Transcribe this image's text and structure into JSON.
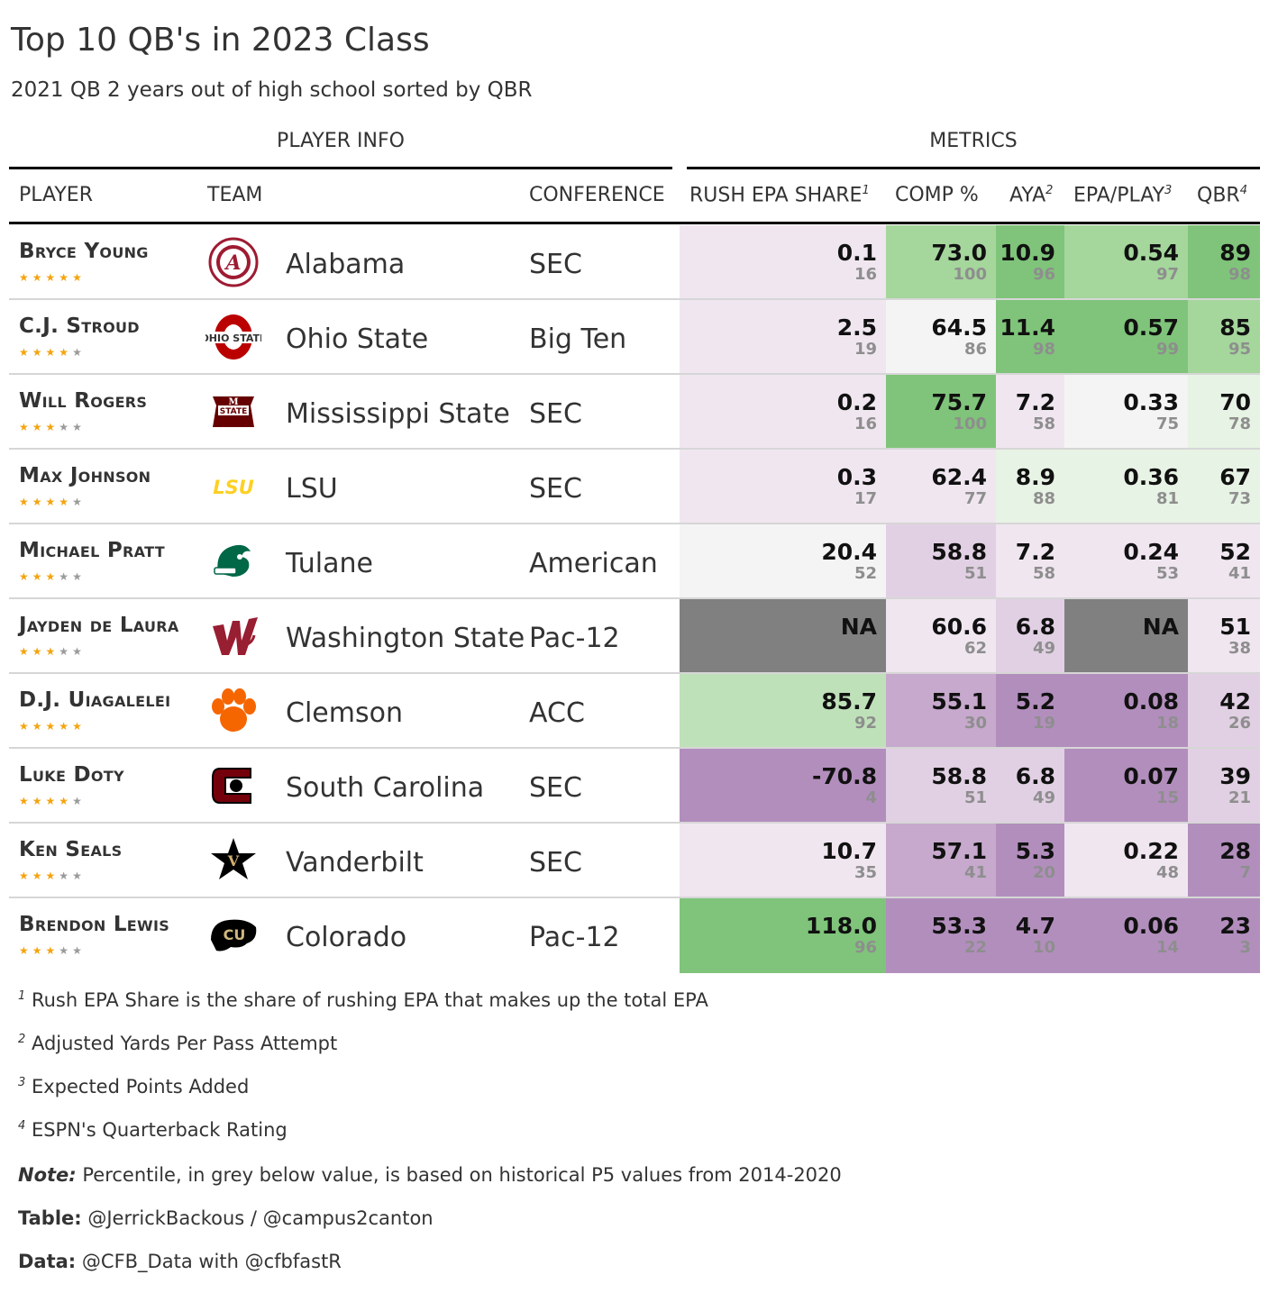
{
  "header": {
    "title": "Top 10 QB's in 2023 Class",
    "subtitle": "2021 QB 2 years out of high school sorted by QBR",
    "spanner_player": "PLAYER INFO",
    "spanner_metrics": "METRICS"
  },
  "columns": {
    "player": "PLAYER",
    "team": "TEAM",
    "conference": "CONFERENCE",
    "rush": "RUSH EPA SHARE",
    "rush_mark": "1",
    "comp": "COMP %",
    "aya": "AYA",
    "aya_mark": "2",
    "epa": "EPA/PLAY",
    "epa_mark": "3",
    "qbr": "QBR",
    "qbr_mark": "4"
  },
  "colors": {
    "green_1": "#e7f3e4",
    "green_2": "#bfe1b9",
    "green_3": "#a5d69c",
    "green_4": "#7fc47a",
    "neutral": "#f4f4f4",
    "purple_1": "#f0e6f0",
    "purple_2": "#e1d0e3",
    "purple_3": "#c6a9cc",
    "purple_4": "#b28ebd",
    "na": "#808080",
    "star_on": "#f4a40f",
    "star_off": "#9a9a9a"
  },
  "chart_data": {
    "type": "table",
    "title": "Top 10 QB's in 2023 Class",
    "subtitle": "2021 QB 2 years out of high school sorted by QBR",
    "columns": [
      "PLAYER",
      "TEAM",
      "CONFERENCE",
      "RUSH EPA SHARE",
      "COMP %",
      "AYA",
      "EPA/PLAY",
      "QBR"
    ],
    "rows": [
      {
        "player": "Bryce Young",
        "stars": 5,
        "team": "Alabama",
        "logo": "alabama-logo",
        "conference": "SEC",
        "rush": {
          "v": "0.1",
          "p": "16",
          "c": "purple_1"
        },
        "comp": {
          "v": "73.0",
          "p": "100",
          "c": "green_3"
        },
        "aya": {
          "v": "10.9",
          "p": "96",
          "c": "green_4"
        },
        "epa": {
          "v": "0.54",
          "p": "97",
          "c": "green_3"
        },
        "qbr": {
          "v": "89",
          "p": "98",
          "c": "green_4"
        }
      },
      {
        "player": "C.J. Stroud",
        "stars": 4,
        "team": "Ohio State",
        "logo": "ohio-state-logo",
        "conference": "Big Ten",
        "rush": {
          "v": "2.5",
          "p": "19",
          "c": "purple_1"
        },
        "comp": {
          "v": "64.5",
          "p": "86",
          "c": "neutral"
        },
        "aya": {
          "v": "11.4",
          "p": "98",
          "c": "green_4"
        },
        "epa": {
          "v": "0.57",
          "p": "99",
          "c": "green_4"
        },
        "qbr": {
          "v": "85",
          "p": "95",
          "c": "green_3"
        }
      },
      {
        "player": "Will Rogers",
        "stars": 3,
        "team": "Mississippi State",
        "logo": "mississippi-state-logo",
        "conference": "SEC",
        "rush": {
          "v": "0.2",
          "p": "16",
          "c": "purple_1"
        },
        "comp": {
          "v": "75.7",
          "p": "100",
          "c": "green_4"
        },
        "aya": {
          "v": "7.2",
          "p": "58",
          "c": "purple_1"
        },
        "epa": {
          "v": "0.33",
          "p": "75",
          "c": "neutral"
        },
        "qbr": {
          "v": "70",
          "p": "78",
          "c": "green_1"
        }
      },
      {
        "player": "Max Johnson",
        "stars": 4,
        "team": "LSU",
        "logo": "lsu-logo",
        "conference": "SEC",
        "rush": {
          "v": "0.3",
          "p": "17",
          "c": "purple_1"
        },
        "comp": {
          "v": "62.4",
          "p": "77",
          "c": "purple_1"
        },
        "aya": {
          "v": "8.9",
          "p": "88",
          "c": "green_1"
        },
        "epa": {
          "v": "0.36",
          "p": "81",
          "c": "green_1"
        },
        "qbr": {
          "v": "67",
          "p": "73",
          "c": "green_1"
        }
      },
      {
        "player": "Michael Pratt",
        "stars": 3,
        "team": "Tulane",
        "logo": "tulane-logo",
        "conference": "American",
        "rush": {
          "v": "20.4",
          "p": "52",
          "c": "neutral"
        },
        "comp": {
          "v": "58.8",
          "p": "51",
          "c": "purple_2"
        },
        "aya": {
          "v": "7.2",
          "p": "58",
          "c": "purple_1"
        },
        "epa": {
          "v": "0.24",
          "p": "53",
          "c": "purple_1"
        },
        "qbr": {
          "v": "52",
          "p": "41",
          "c": "purple_1"
        }
      },
      {
        "player": "Jayden de Laura",
        "stars": 3,
        "team": "Washington State",
        "logo": "washington-state-logo",
        "conference": "Pac-12",
        "rush": {
          "v": "NA",
          "p": "",
          "c": "na"
        },
        "comp": {
          "v": "60.6",
          "p": "62",
          "c": "purple_1"
        },
        "aya": {
          "v": "6.8",
          "p": "49",
          "c": "purple_2"
        },
        "epa": {
          "v": "NA",
          "p": "",
          "c": "na"
        },
        "qbr": {
          "v": "51",
          "p": "38",
          "c": "purple_1"
        }
      },
      {
        "player": "D.J. Uiagalelei",
        "stars": 5,
        "team": "Clemson",
        "logo": "clemson-logo",
        "conference": "ACC",
        "rush": {
          "v": "85.7",
          "p": "92",
          "c": "green_2"
        },
        "comp": {
          "v": "55.1",
          "p": "30",
          "c": "purple_3"
        },
        "aya": {
          "v": "5.2",
          "p": "19",
          "c": "purple_4"
        },
        "epa": {
          "v": "0.08",
          "p": "18",
          "c": "purple_4"
        },
        "qbr": {
          "v": "42",
          "p": "26",
          "c": "purple_2"
        }
      },
      {
        "player": "Luke Doty",
        "stars": 4,
        "team": "South Carolina",
        "logo": "south-carolina-logo",
        "conference": "SEC",
        "rush": {
          "v": "-70.8",
          "p": "4",
          "c": "purple_4"
        },
        "comp": {
          "v": "58.8",
          "p": "51",
          "c": "purple_2"
        },
        "aya": {
          "v": "6.8",
          "p": "49",
          "c": "purple_2"
        },
        "epa": {
          "v": "0.07",
          "p": "15",
          "c": "purple_4"
        },
        "qbr": {
          "v": "39",
          "p": "21",
          "c": "purple_2"
        }
      },
      {
        "player": "Ken Seals",
        "stars": 3,
        "team": "Vanderbilt",
        "logo": "vanderbilt-logo",
        "conference": "SEC",
        "rush": {
          "v": "10.7",
          "p": "35",
          "c": "purple_1"
        },
        "comp": {
          "v": "57.1",
          "p": "41",
          "c": "purple_3"
        },
        "aya": {
          "v": "5.3",
          "p": "20",
          "c": "purple_4"
        },
        "epa": {
          "v": "0.22",
          "p": "48",
          "c": "purple_1"
        },
        "qbr": {
          "v": "28",
          "p": "7",
          "c": "purple_4"
        }
      },
      {
        "player": "Brendon Lewis",
        "stars": 3,
        "team": "Colorado",
        "logo": "colorado-logo",
        "conference": "Pac-12",
        "rush": {
          "v": "118.0",
          "p": "96",
          "c": "green_4"
        },
        "comp": {
          "v": "53.3",
          "p": "22",
          "c": "purple_4"
        },
        "aya": {
          "v": "4.7",
          "p": "10",
          "c": "purple_4"
        },
        "epa": {
          "v": "0.06",
          "p": "14",
          "c": "purple_4"
        },
        "qbr": {
          "v": "23",
          "p": "3",
          "c": "purple_4"
        }
      }
    ]
  },
  "footnotes": [
    {
      "mark": "1",
      "text": "Rush EPA Share is the share of rushing EPA that makes up the total EPA"
    },
    {
      "mark": "2",
      "text": "Adjusted Yards Per Pass Attempt"
    },
    {
      "mark": "3",
      "text": "Expected Points Added"
    },
    {
      "mark": "4",
      "text": "ESPN's Quarterback Rating"
    }
  ],
  "source_notes": {
    "note_label": "Note:",
    "note_text": "Percentile, in grey below value, is based on historical P5 values from 2014-2020",
    "table_label": "Table:",
    "table_text": "@JerrickBackous / @campus2canton",
    "data_label": "Data:",
    "data_text": "@CFB_Data with @cfbfastR"
  }
}
